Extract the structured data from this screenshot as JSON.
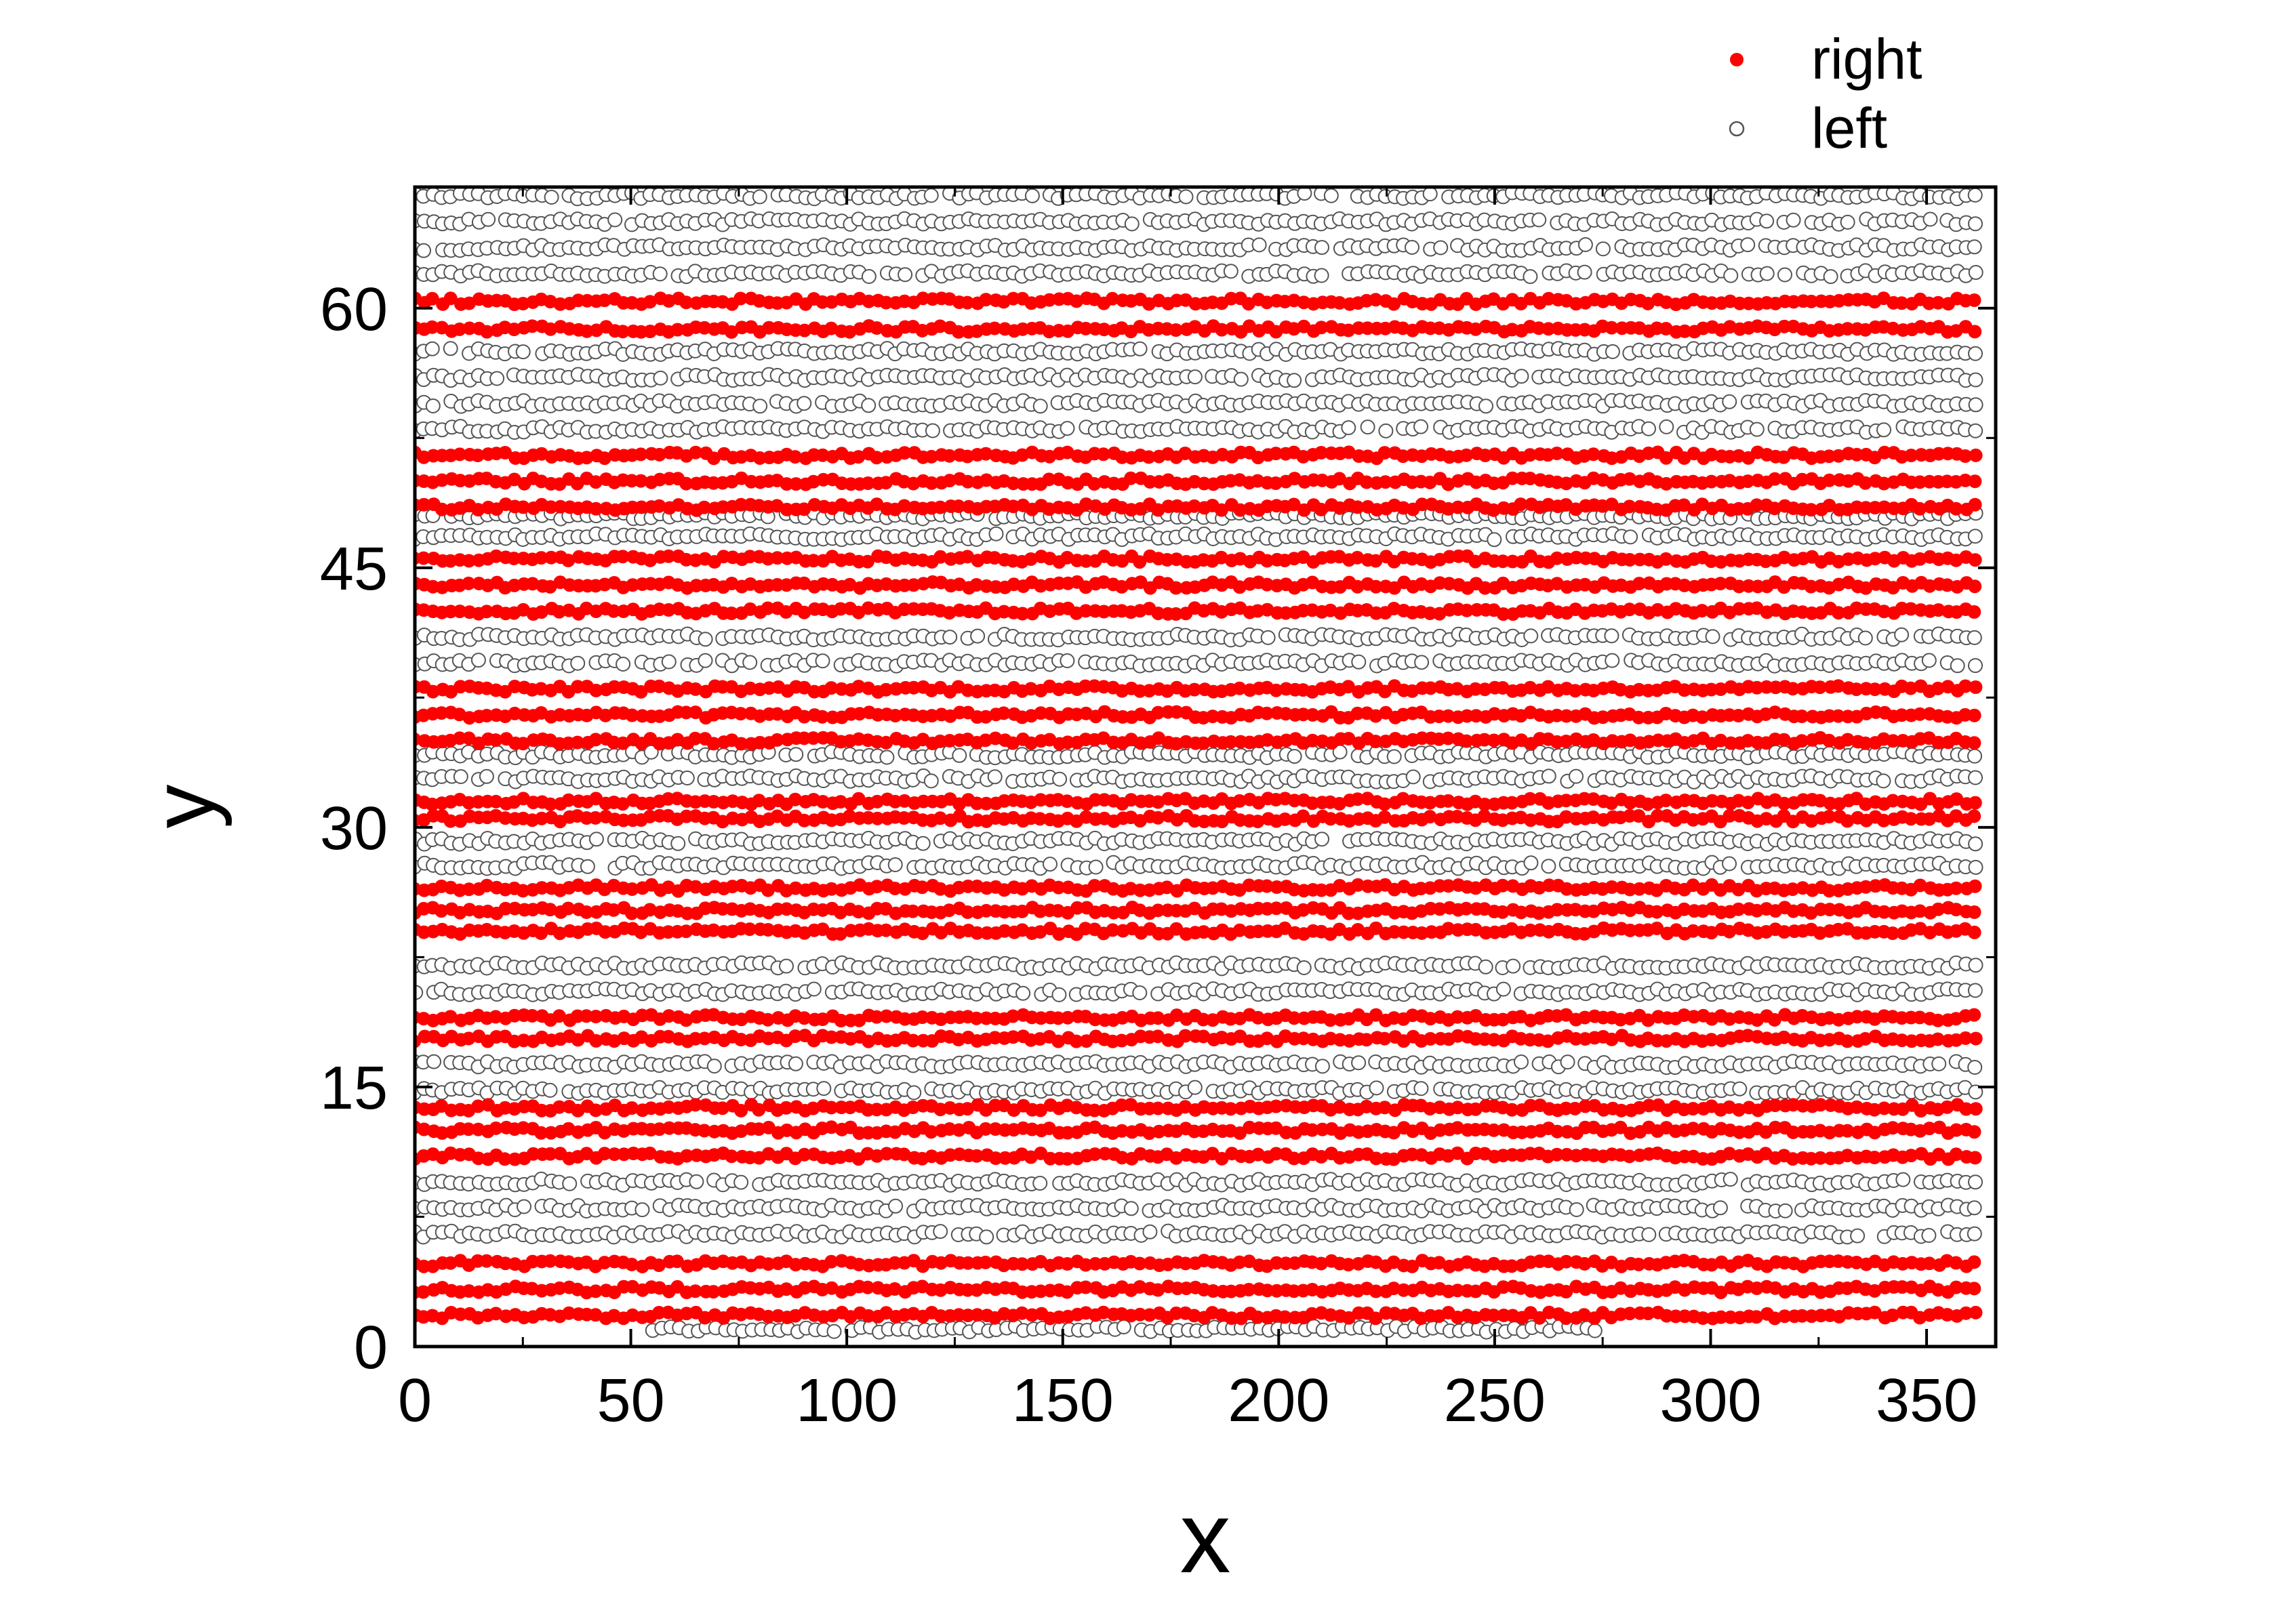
{
  "chart_data": {
    "type": "scatter",
    "xlabel": "x",
    "ylabel": "y",
    "xlim": [
      0,
      366
    ],
    "ylim": [
      0,
      67
    ],
    "x_ticks": [
      0,
      50,
      100,
      150,
      200,
      250,
      300,
      350
    ],
    "y_ticks": [
      0,
      15,
      30,
      45,
      60
    ],
    "grid": false,
    "legend": "top-right",
    "colors": {
      "right": "#ff0000",
      "left": "#ffffff",
      "left_edge": "#555555"
    },
    "series": [
      {
        "name": "right",
        "marker": "filled-circle",
        "color": "#ff0000",
        "lanes": [
          {
            "y_values": [
              1.8,
              3.3,
              4.8
            ],
            "x_range": [
              0,
              363
            ]
          },
          {
            "y_values": [
              11.0,
              12.5,
              13.8
            ],
            "x_range": [
              0,
              363
            ]
          },
          {
            "y_values": [
              17.8,
              19.0
            ],
            "x_range": [
              0,
              363
            ]
          },
          {
            "y_values": [
              24.0,
              25.2,
              26.5
            ],
            "x_range": [
              0,
              363
            ]
          },
          {
            "y_values": [
              30.5,
              31.5
            ],
            "x_range": [
              0,
              363
            ]
          },
          {
            "y_values": [
              35.0,
              36.5,
              38.0
            ],
            "x_range": [
              0,
              363
            ]
          },
          {
            "y_values": [
              42.5,
              44.0,
              45.5
            ],
            "x_range": [
              0,
              363
            ]
          },
          {
            "y_values": [
              48.5,
              50.0,
              51.5
            ],
            "x_range": [
              0,
              363
            ]
          },
          {
            "y_values": [
              58.8,
              60.4
            ],
            "x_range": [
              0,
              363
            ]
          }
        ]
      },
      {
        "name": "left",
        "marker": "open-circle",
        "color": "#ffffff",
        "lanes": [
          {
            "y_values": [
              1.0
            ],
            "x_range": [
              55,
              275
            ]
          },
          {
            "y_values": [
              6.5,
              8.0,
              9.5
            ],
            "x_range": [
              0,
              363
            ]
          },
          {
            "y_values": [
              14.8,
              16.3
            ],
            "x_range": [
              0,
              363
            ]
          },
          {
            "y_values": [
              20.5,
              22.0
            ],
            "x_range": [
              0,
              363
            ]
          },
          {
            "y_values": [
              27.8,
              29.2
            ],
            "x_range": [
              0,
              363
            ]
          },
          {
            "y_values": [
              32.8,
              34.2
            ],
            "x_range": [
              0,
              363
            ]
          },
          {
            "y_values": [
              39.5,
              41.0
            ],
            "x_range": [
              0,
              363
            ]
          },
          {
            "y_values": [
              46.8,
              48.0
            ],
            "x_range": [
              0,
              363
            ]
          },
          {
            "y_values": [
              53.0,
              54.5,
              56.0,
              57.5
            ],
            "x_range": [
              0,
              363
            ]
          },
          {
            "y_values": [
              62.0,
              63.5,
              65.0,
              66.5
            ],
            "x_range": [
              0,
              363
            ]
          }
        ]
      }
    ]
  }
}
